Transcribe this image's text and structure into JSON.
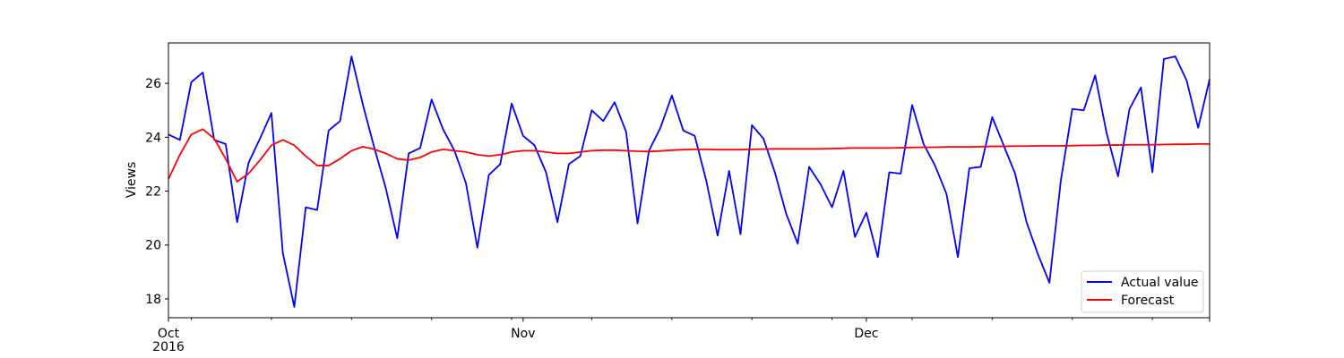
{
  "chart_data": {
    "type": "line",
    "title": "",
    "xlabel": "",
    "ylabel": "Views",
    "x_start": "2016-10-01",
    "x_end": "2016-12-31",
    "xlim": [
      "2016-10-01",
      "2016-12-31"
    ],
    "ylim": [
      17.3,
      27.5
    ],
    "yticks": [
      18,
      20,
      22,
      24,
      26
    ],
    "xticks": [
      {
        "date": "2016-10-01",
        "label": "Oct",
        "sublabel": "2016"
      },
      {
        "date": "2016-11-01",
        "label": "Nov",
        "sublabel": ""
      },
      {
        "date": "2016-12-01",
        "label": "Dec",
        "sublabel": ""
      }
    ],
    "minor_xticks": [
      "2016-10-03",
      "2016-10-10",
      "2016-10-17",
      "2016-10-24",
      "2016-10-31",
      "2016-11-07",
      "2016-11-14",
      "2016-11-21",
      "2016-11-28",
      "2016-12-05",
      "2016-12-12",
      "2016-12-19",
      "2016-12-26"
    ],
    "grid": false,
    "legend": "lower-right",
    "series": [
      {
        "name": "Actual value",
        "color": "#0000ff",
        "points": [
          [
            "2016-10-01",
            24.1
          ],
          [
            "2016-10-02",
            23.9
          ],
          [
            "2016-10-03",
            26.05
          ],
          [
            "2016-10-04",
            26.4
          ],
          [
            "2016-10-05",
            23.9
          ],
          [
            "2016-10-06",
            23.75
          ],
          [
            "2016-10-07",
            20.85
          ],
          [
            "2016-10-08",
            23.05
          ],
          [
            "2016-10-09",
            23.95
          ],
          [
            "2016-10-10",
            24.9
          ],
          [
            "2016-10-11",
            19.7
          ],
          [
            "2016-10-12",
            17.7
          ],
          [
            "2016-10-13",
            21.4
          ],
          [
            "2016-10-14",
            21.3
          ],
          [
            "2016-10-15",
            24.25
          ],
          [
            "2016-10-16",
            24.6
          ],
          [
            "2016-10-17",
            27.0
          ],
          [
            "2016-10-18",
            25.2
          ],
          [
            "2016-10-19",
            23.6
          ],
          [
            "2016-10-20",
            22.1
          ],
          [
            "2016-10-21",
            20.25
          ],
          [
            "2016-10-22",
            23.4
          ],
          [
            "2016-10-23",
            23.6
          ],
          [
            "2016-10-24",
            25.4
          ],
          [
            "2016-10-25",
            24.3
          ],
          [
            "2016-10-26",
            23.5
          ],
          [
            "2016-10-27",
            22.3
          ],
          [
            "2016-10-28",
            19.9
          ],
          [
            "2016-10-29",
            22.6
          ],
          [
            "2016-10-30",
            23.0
          ],
          [
            "2016-10-31",
            25.25
          ],
          [
            "2016-11-01",
            24.05
          ],
          [
            "2016-11-02",
            23.7
          ],
          [
            "2016-11-03",
            22.7
          ],
          [
            "2016-11-04",
            20.85
          ],
          [
            "2016-11-05",
            23.0
          ],
          [
            "2016-11-06",
            23.3
          ],
          [
            "2016-11-07",
            25.0
          ],
          [
            "2016-11-08",
            24.6
          ],
          [
            "2016-11-09",
            25.3
          ],
          [
            "2016-11-10",
            24.2
          ],
          [
            "2016-11-11",
            20.8
          ],
          [
            "2016-11-12",
            23.5
          ],
          [
            "2016-11-13",
            24.35
          ],
          [
            "2016-11-14",
            25.55
          ],
          [
            "2016-11-15",
            24.25
          ],
          [
            "2016-11-16",
            24.05
          ],
          [
            "2016-11-17",
            22.4
          ],
          [
            "2016-11-18",
            20.35
          ],
          [
            "2016-11-19",
            22.75
          ],
          [
            "2016-11-20",
            20.4
          ],
          [
            "2016-11-21",
            24.45
          ],
          [
            "2016-11-22",
            23.95
          ],
          [
            "2016-11-23",
            22.7
          ],
          [
            "2016-11-24",
            21.15
          ],
          [
            "2016-11-25",
            20.05
          ],
          [
            "2016-11-26",
            22.9
          ],
          [
            "2016-11-27",
            22.25
          ],
          [
            "2016-11-28",
            21.4
          ],
          [
            "2016-11-29",
            22.75
          ],
          [
            "2016-11-30",
            20.3
          ],
          [
            "2016-12-01",
            21.2
          ],
          [
            "2016-12-02",
            19.55
          ],
          [
            "2016-12-03",
            22.7
          ],
          [
            "2016-12-04",
            22.65
          ],
          [
            "2016-12-05",
            25.2
          ],
          [
            "2016-12-06",
            23.75
          ],
          [
            "2016-12-07",
            22.95
          ],
          [
            "2016-12-08",
            21.9
          ],
          [
            "2016-12-09",
            19.55
          ],
          [
            "2016-12-10",
            22.85
          ],
          [
            "2016-12-11",
            22.9
          ],
          [
            "2016-12-12",
            24.75
          ],
          [
            "2016-12-13",
            23.7
          ],
          [
            "2016-12-14",
            22.65
          ],
          [
            "2016-12-15",
            20.85
          ],
          [
            "2016-12-16",
            19.65
          ],
          [
            "2016-12-17",
            18.6
          ],
          [
            "2016-12-18",
            22.4
          ],
          [
            "2016-12-19",
            25.05
          ],
          [
            "2016-12-20",
            25.0
          ],
          [
            "2016-12-21",
            26.3
          ],
          [
            "2016-12-22",
            24.15
          ],
          [
            "2016-12-23",
            22.55
          ],
          [
            "2016-12-24",
            25.05
          ],
          [
            "2016-12-25",
            25.85
          ],
          [
            "2016-12-26",
            22.7
          ],
          [
            "2016-12-27",
            26.9
          ],
          [
            "2016-12-28",
            27.0
          ],
          [
            "2016-12-29",
            26.1
          ],
          [
            "2016-12-30",
            24.35
          ],
          [
            "2016-12-31",
            26.15
          ]
        ]
      },
      {
        "name": "Forecast",
        "color": "#ff0000",
        "points": [
          [
            "2016-10-01",
            22.45
          ],
          [
            "2016-10-02",
            23.35
          ],
          [
            "2016-10-03",
            24.1
          ],
          [
            "2016-10-04",
            24.3
          ],
          [
            "2016-10-05",
            23.95
          ],
          [
            "2016-10-06",
            23.2
          ],
          [
            "2016-10-07",
            22.35
          ],
          [
            "2016-10-08",
            22.65
          ],
          [
            "2016-10-09",
            23.15
          ],
          [
            "2016-10-10",
            23.7
          ],
          [
            "2016-10-11",
            23.9
          ],
          [
            "2016-10-12",
            23.7
          ],
          [
            "2016-10-13",
            23.3
          ],
          [
            "2016-10-14",
            22.95
          ],
          [
            "2016-10-15",
            22.95
          ],
          [
            "2016-10-16",
            23.2
          ],
          [
            "2016-10-17",
            23.5
          ],
          [
            "2016-10-18",
            23.65
          ],
          [
            "2016-10-19",
            23.55
          ],
          [
            "2016-10-20",
            23.4
          ],
          [
            "2016-10-21",
            23.2
          ],
          [
            "2016-10-22",
            23.15
          ],
          [
            "2016-10-23",
            23.25
          ],
          [
            "2016-10-24",
            23.45
          ],
          [
            "2016-10-25",
            23.55
          ],
          [
            "2016-10-26",
            23.5
          ],
          [
            "2016-10-27",
            23.45
          ],
          [
            "2016-10-28",
            23.35
          ],
          [
            "2016-10-29",
            23.3
          ],
          [
            "2016-10-30",
            23.35
          ],
          [
            "2016-10-31",
            23.45
          ],
          [
            "2016-11-01",
            23.5
          ],
          [
            "2016-11-02",
            23.5
          ],
          [
            "2016-11-03",
            23.45
          ],
          [
            "2016-11-04",
            23.4
          ],
          [
            "2016-11-05",
            23.4
          ],
          [
            "2016-11-06",
            23.45
          ],
          [
            "2016-11-07",
            23.5
          ],
          [
            "2016-11-08",
            23.52
          ],
          [
            "2016-11-09",
            23.52
          ],
          [
            "2016-11-10",
            23.5
          ],
          [
            "2016-11-11",
            23.48
          ],
          [
            "2016-11-12",
            23.47
          ],
          [
            "2016-11-13",
            23.49
          ],
          [
            "2016-11-14",
            23.52
          ],
          [
            "2016-11-15",
            23.54
          ],
          [
            "2016-11-16",
            23.55
          ],
          [
            "2016-11-17",
            23.55
          ],
          [
            "2016-11-18",
            23.54
          ],
          [
            "2016-11-19",
            23.54
          ],
          [
            "2016-11-20",
            23.54
          ],
          [
            "2016-11-21",
            23.55
          ],
          [
            "2016-11-22",
            23.56
          ],
          [
            "2016-11-23",
            23.57
          ],
          [
            "2016-11-24",
            23.57
          ],
          [
            "2016-11-25",
            23.57
          ],
          [
            "2016-11-26",
            23.57
          ],
          [
            "2016-11-27",
            23.57
          ],
          [
            "2016-11-28",
            23.58
          ],
          [
            "2016-11-29",
            23.59
          ],
          [
            "2016-11-30",
            23.6
          ],
          [
            "2016-12-01",
            23.6
          ],
          [
            "2016-12-02",
            23.6
          ],
          [
            "2016-12-03",
            23.6
          ],
          [
            "2016-12-04",
            23.61
          ],
          [
            "2016-12-05",
            23.62
          ],
          [
            "2016-12-06",
            23.63
          ],
          [
            "2016-12-07",
            23.63
          ],
          [
            "2016-12-08",
            23.64
          ],
          [
            "2016-12-09",
            23.64
          ],
          [
            "2016-12-10",
            23.64
          ],
          [
            "2016-12-11",
            23.65
          ],
          [
            "2016-12-12",
            23.66
          ],
          [
            "2016-12-13",
            23.66
          ],
          [
            "2016-12-14",
            23.67
          ],
          [
            "2016-12-15",
            23.67
          ],
          [
            "2016-12-16",
            23.68
          ],
          [
            "2016-12-17",
            23.68
          ],
          [
            "2016-12-18",
            23.68
          ],
          [
            "2016-12-19",
            23.69
          ],
          [
            "2016-12-20",
            23.7
          ],
          [
            "2016-12-21",
            23.7
          ],
          [
            "2016-12-22",
            23.71
          ],
          [
            "2016-12-23",
            23.71
          ],
          [
            "2016-12-24",
            23.72
          ],
          [
            "2016-12-25",
            23.72
          ],
          [
            "2016-12-26",
            23.72
          ],
          [
            "2016-12-27",
            23.73
          ],
          [
            "2016-12-28",
            23.74
          ],
          [
            "2016-12-29",
            23.74
          ],
          [
            "2016-12-30",
            23.75
          ],
          [
            "2016-12-31",
            23.75
          ]
        ]
      }
    ]
  }
}
